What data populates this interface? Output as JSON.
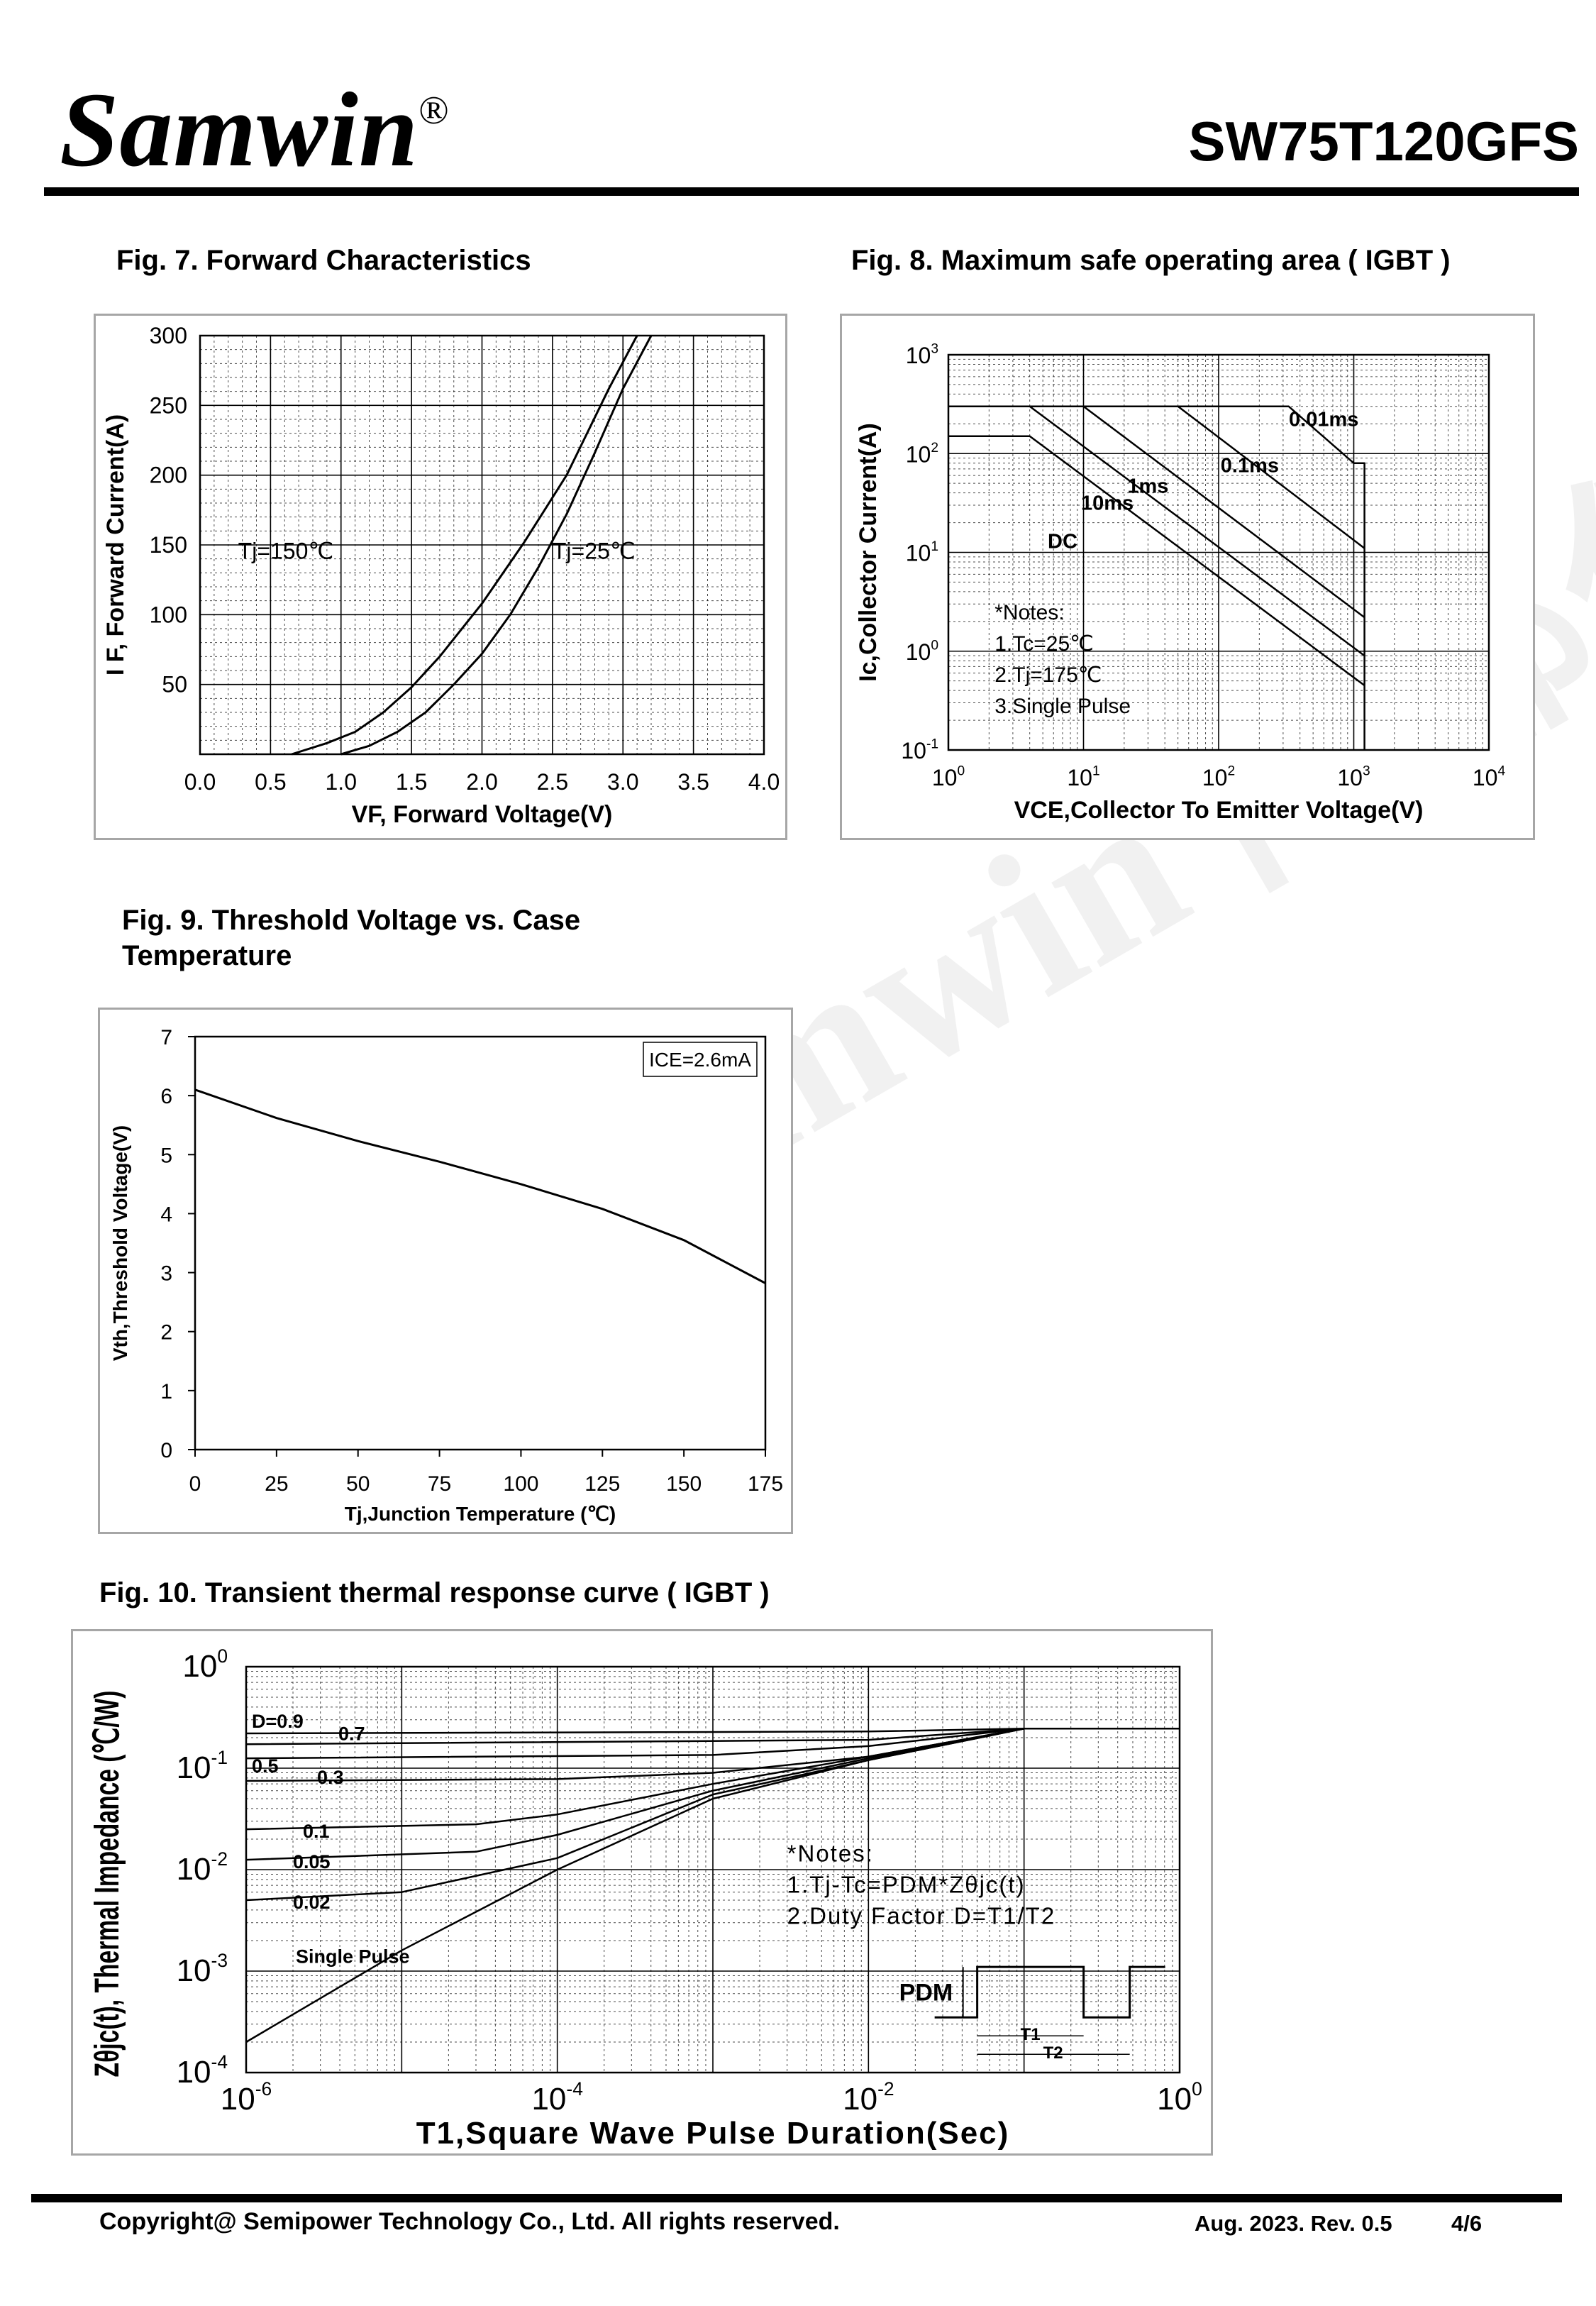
{
  "header": {
    "logo": "Samwin",
    "logo_mark": "®",
    "part_number": "SW75T120GFS"
  },
  "footer": {
    "copyright": "Copyright@ Semipower Technology Co., Ltd. All rights reserved.",
    "revision": "Aug. 2023. Rev. 0.5",
    "page": "4/6"
  },
  "watermark": "Samwin 内部保密",
  "chart_data": [
    {
      "id": "fig7",
      "title": "Fig. 7. Forward Characteristics",
      "type": "line",
      "xlabel": "VF, Forward Voltage(V)",
      "ylabel": "I F, Forward Current(A)",
      "xlim": [
        0,
        4.0
      ],
      "ylim": [
        0,
        300
      ],
      "xticks": [
        "0.0",
        "0.5",
        "1.0",
        "1.5",
        "2.0",
        "2.5",
        "3.0",
        "3.5",
        "4.0"
      ],
      "yticks": [
        "50",
        "100",
        "150",
        "200",
        "250",
        "300"
      ],
      "grid": true,
      "annotations": [
        "Tj=150℃",
        "Tj=25℃"
      ],
      "series": [
        {
          "name": "Tj=150℃",
          "x": [
            0.65,
            0.9,
            1.1,
            1.3,
            1.5,
            1.7,
            2.0,
            2.3,
            2.6,
            2.9,
            3.1
          ],
          "y": [
            0,
            8,
            16,
            30,
            48,
            70,
            108,
            152,
            200,
            262,
            300
          ]
        },
        {
          "name": "Tj=25℃",
          "x": [
            1.0,
            1.2,
            1.4,
            1.6,
            1.8,
            2.0,
            2.2,
            2.4,
            2.6,
            2.8,
            3.0,
            3.2
          ],
          "y": [
            0,
            6,
            16,
            30,
            50,
            72,
            100,
            134,
            172,
            216,
            262,
            300
          ]
        }
      ]
    },
    {
      "id": "fig8",
      "title": "Fig. 8. Maximum safe operating area ( IGBT )",
      "type": "line",
      "xlabel": "VCE,Collector To Emitter Voltage(V)",
      "ylabel": "Ic,Collector Current(A)",
      "xscale": "log",
      "yscale": "log",
      "xlim": [
        1,
        10000
      ],
      "ylim": [
        0.1,
        1000
      ],
      "xticks": [
        "10^0",
        "10^1",
        "10^2",
        "10^3",
        "10^4"
      ],
      "yticks": [
        "10^-1",
        "10^0",
        "10^1",
        "10^2",
        "10^3"
      ],
      "grid": true,
      "notes": [
        "*Notes:",
        "1.Tc=25℃",
        "2.Tj=175℃",
        "3.Single Pulse"
      ],
      "series": [
        {
          "name": "0.01ms",
          "x": [
            1,
            330,
            1000,
            1200,
            1200
          ],
          "y": [
            300,
            300,
            80,
            80,
            0.1
          ]
        },
        {
          "name": "0.1ms",
          "x": [
            1,
            50,
            1200
          ],
          "y": [
            300,
            300,
            11
          ]
        },
        {
          "name": "1ms",
          "x": [
            1,
            10,
            1200
          ],
          "y": [
            300,
            300,
            2.2
          ]
        },
        {
          "name": "10ms",
          "x": [
            1,
            4,
            1200
          ],
          "y": [
            300,
            300,
            0.9
          ]
        },
        {
          "name": "DC",
          "x": [
            1,
            4,
            1200
          ],
          "y": [
            150,
            150,
            0.45
          ]
        }
      ]
    },
    {
      "id": "fig9",
      "title": "Fig. 9. Threshold Voltage vs. Case Temperature",
      "type": "line",
      "xlabel": "Tj,Junction Temperature (℃)",
      "ylabel": "Vth,Threshold Voltage(V)",
      "xlim": [
        0,
        175
      ],
      "ylim": [
        0,
        7
      ],
      "xticks": [
        "0",
        "25",
        "50",
        "75",
        "100",
        "125",
        "150",
        "175"
      ],
      "yticks": [
        "0",
        "1",
        "2",
        "3",
        "4",
        "5",
        "6",
        "7"
      ],
      "grid": false,
      "legend": "ICE=2.6mA",
      "series": [
        {
          "name": "Vth",
          "x": [
            0,
            25,
            50,
            75,
            100,
            125,
            150,
            175
          ],
          "y": [
            6.1,
            5.62,
            5.23,
            4.88,
            4.5,
            4.08,
            3.55,
            2.82
          ]
        }
      ]
    },
    {
      "id": "fig10",
      "title": "Fig. 10. Transient thermal response curve ( IGBT )",
      "type": "line",
      "xlabel": "T1,Square Wave Pulse Duration(Sec)",
      "ylabel": "Zθjc(t), Thermal Impedance (℃/W)",
      "xscale": "log",
      "yscale": "log",
      "xlim": [
        1e-06,
        1
      ],
      "ylim": [
        0.0001,
        1
      ],
      "xticks": [
        "10^-6",
        "10^-4",
        "10^-2",
        "10^0"
      ],
      "yticks": [
        "10^0",
        "10^-1",
        "10^-2",
        "10^-3",
        "10^-4"
      ],
      "grid": true,
      "notes": [
        "*Notes:",
        "1.Tj-Tc=PDM*Zθjc(t)",
        "2.Duty Factor D=T1/T2"
      ],
      "inset_labels": {
        "pdm": "PDM",
        "t1": "T1",
        "t2": "T2"
      },
      "series": [
        {
          "name": "D=0.9",
          "x": [
            1e-06,
            0.01,
            0.1,
            1
          ],
          "y": [
            0.22,
            0.23,
            0.245,
            0.245
          ]
        },
        {
          "name": "0.7",
          "x": [
            1e-06,
            0.01,
            0.1,
            1
          ],
          "y": [
            0.172,
            0.19,
            0.245,
            0.245
          ]
        },
        {
          "name": "0.5",
          "x": [
            1e-06,
            0.001,
            0.01,
            0.1,
            1
          ],
          "y": [
            0.125,
            0.135,
            0.165,
            0.245,
            0.245
          ]
        },
        {
          "name": "0.3",
          "x": [
            1e-06,
            0.0001,
            0.001,
            0.01,
            0.1,
            1
          ],
          "y": [
            0.075,
            0.078,
            0.09,
            0.13,
            0.245,
            0.245
          ]
        },
        {
          "name": "0.1",
          "x": [
            1e-06,
            3e-05,
            0.0001,
            0.001,
            0.01,
            0.1,
            1
          ],
          "y": [
            0.025,
            0.028,
            0.035,
            0.07,
            0.13,
            0.245,
            0.245
          ]
        },
        {
          "name": "0.05",
          "x": [
            1e-06,
            3e-05,
            0.0001,
            0.001,
            0.01,
            0.1,
            1
          ],
          "y": [
            0.0125,
            0.015,
            0.022,
            0.06,
            0.125,
            0.245,
            0.245
          ]
        },
        {
          "name": "0.02",
          "x": [
            1e-06,
            1e-05,
            0.0001,
            0.001,
            0.01,
            0.1,
            1
          ],
          "y": [
            0.005,
            0.006,
            0.013,
            0.055,
            0.12,
            0.245,
            0.245
          ]
        },
        {
          "name": "Single Pulse",
          "x": [
            1e-06,
            1e-05,
            0.0001,
            0.001,
            0.01,
            0.1,
            1
          ],
          "y": [
            0.0002,
            0.0016,
            0.01,
            0.05,
            0.12,
            0.245,
            0.245
          ]
        }
      ]
    }
  ]
}
